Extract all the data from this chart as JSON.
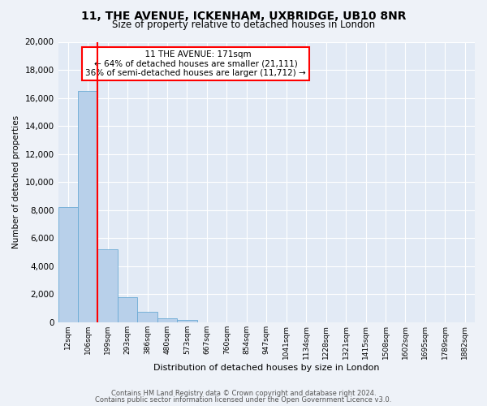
{
  "title1": "11, THE AVENUE, ICKENHAM, UXBRIDGE, UB10 8NR",
  "title2": "Size of property relative to detached houses in London",
  "xlabel": "Distribution of detached houses by size in London",
  "ylabel": "Number of detached properties",
  "bar_labels": [
    "12sqm",
    "106sqm",
    "199sqm",
    "293sqm",
    "386sqm",
    "480sqm",
    "573sqm",
    "667sqm",
    "760sqm",
    "854sqm",
    "947sqm",
    "1041sqm",
    "1134sqm",
    "1228sqm",
    "1321sqm",
    "1415sqm",
    "1508sqm",
    "1602sqm",
    "1695sqm",
    "1789sqm",
    "1882sqm"
  ],
  "bar_values": [
    8200,
    16500,
    5200,
    1800,
    750,
    300,
    150,
    0,
    0,
    0,
    0,
    0,
    0,
    0,
    0,
    0,
    0,
    0,
    0,
    0,
    0
  ],
  "bar_color": "#b8d0ea",
  "bar_edge_color": "#6aaad4",
  "vline_color": "red",
  "annotation_title": "11 THE AVENUE: 171sqm",
  "annotation_line1": "← 64% of detached houses are smaller (21,111)",
  "annotation_line2": "36% of semi-detached houses are larger (11,712) →",
  "annotation_box_color": "white",
  "annotation_box_edge": "red",
  "ylim": [
    0,
    20000
  ],
  "yticks": [
    0,
    2000,
    4000,
    6000,
    8000,
    10000,
    12000,
    14000,
    16000,
    18000,
    20000
  ],
  "footer1": "Contains HM Land Registry data © Crown copyright and database right 2024.",
  "footer2": "Contains public sector information licensed under the Open Government Licence v3.0.",
  "bg_color": "#eef2f8",
  "plot_bg_color": "#e2eaf5",
  "grid_color": "white",
  "title1_fontsize": 10,
  "title2_fontsize": 8.5,
  "annot_fontsize": 7.5,
  "xlabel_fontsize": 8,
  "ylabel_fontsize": 7.5,
  "tick_fontsize": 6.5,
  "ytick_fontsize": 7.5
}
